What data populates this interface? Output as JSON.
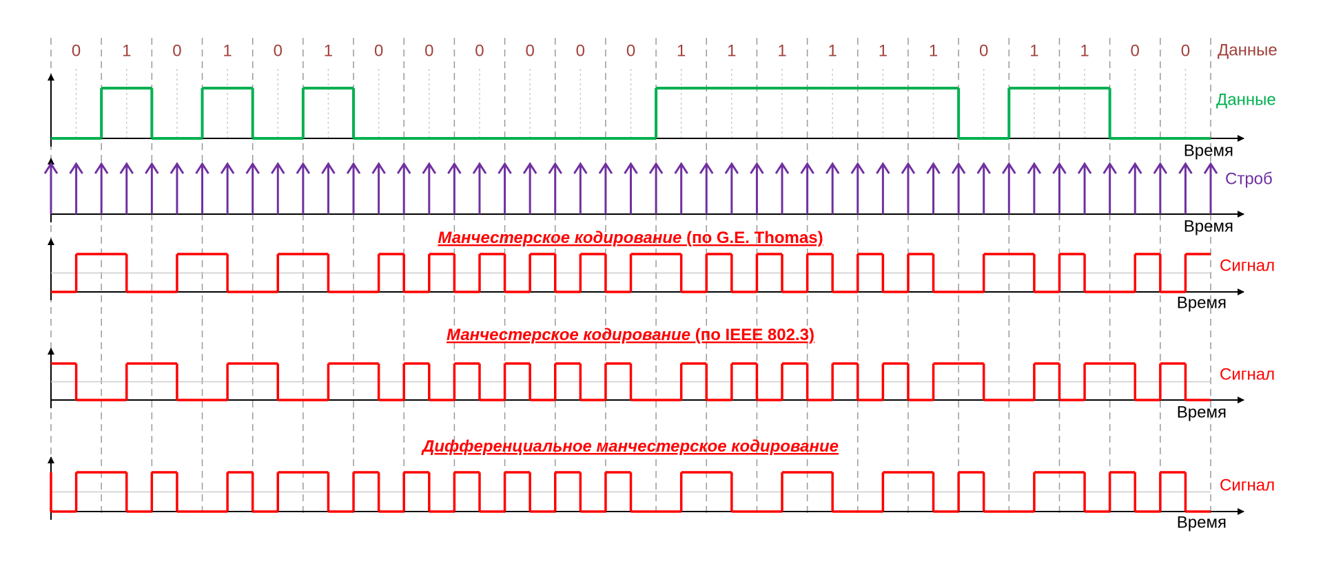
{
  "header": {
    "bits_label": "Данные"
  },
  "bits": [
    0,
    1,
    0,
    1,
    0,
    1,
    0,
    0,
    0,
    0,
    0,
    0,
    1,
    1,
    1,
    1,
    1,
    1,
    0,
    1,
    1,
    0,
    0
  ],
  "data_trace": {
    "label": "Данные",
    "axis_label": "Время",
    "color": "#00b050"
  },
  "strobe": {
    "label": "Строб",
    "axis_label": "Время",
    "color": "#7030a0"
  },
  "signal_color": "#ff0000",
  "signals": [
    {
      "title": "Манчестерское кодирование",
      "title_suffix": " (по G.E. Thomas)",
      "label": "Сигнал",
      "axis_label": "Время",
      "levels": [
        0,
        1,
        1,
        0,
        0,
        1,
        1,
        0,
        0,
        1,
        1,
        0,
        0,
        1,
        0,
        1,
        0,
        1,
        0,
        1,
        0,
        1,
        0,
        1,
        1,
        0,
        1,
        0,
        1,
        0,
        1,
        0,
        1,
        0,
        1,
        0,
        0,
        1,
        1,
        0,
        1,
        0,
        0,
        1,
        0,
        1
      ]
    },
    {
      "title": "Манчестерское кодирование",
      "title_suffix": " (по IEEE 802.3)",
      "label": "Сигнал",
      "axis_label": "Время",
      "levels": [
        1,
        0,
        0,
        1,
        1,
        0,
        0,
        1,
        1,
        0,
        0,
        1,
        1,
        0,
        1,
        0,
        1,
        0,
        1,
        0,
        1,
        0,
        1,
        0,
        0,
        1,
        0,
        1,
        0,
        1,
        0,
        1,
        0,
        1,
        0,
        1,
        1,
        0,
        0,
        1,
        0,
        1,
        1,
        0,
        1,
        0
      ]
    },
    {
      "title": "Дифференциальное манчестерское кодирование",
      "label": "Сигнал",
      "axis_label": "Время",
      "levels": [
        0,
        1,
        1,
        0,
        1,
        0,
        0,
        1,
        0,
        1,
        1,
        0,
        1,
        0,
        1,
        0,
        1,
        0,
        1,
        0,
        1,
        0,
        1,
        0,
        0,
        1,
        1,
        0,
        0,
        1,
        1,
        0,
        0,
        1,
        1,
        0,
        1,
        0,
        0,
        1,
        1,
        0,
        1,
        0,
        1,
        0
      ]
    }
  ]
}
